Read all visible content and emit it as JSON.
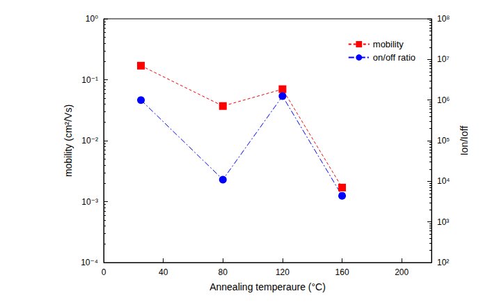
{
  "chart_data": {
    "type": "line",
    "x_label": "Annealing temperaure (°C)",
    "y_label": "mobility (cm²/Vs)",
    "y2_label": "Ion/Ioff",
    "x": [
      25,
      80,
      120,
      160
    ],
    "series": [
      {
        "name": "mobility",
        "color": "#ff0000",
        "values": [
          0.17,
          0.037,
          0.07,
          0.0017
        ],
        "marker": "square",
        "line_style": "dashed"
      },
      {
        "name": "on/off ratio",
        "color": "#0000ff",
        "values": [
          1000000,
          11000,
          1250000,
          4400
        ],
        "marker": "circle",
        "line_style": "dashdot",
        "axis": "y2"
      }
    ],
    "xlim": [
      0,
      220
    ],
    "xticks": [
      0,
      40,
      80,
      120,
      160,
      200
    ],
    "ylim": [
      0.0001,
      1
    ],
    "yticks": [
      {
        "value": 0.0001,
        "label": "10⁻⁴"
      },
      {
        "value": 0.001,
        "label": "10⁻³"
      },
      {
        "value": 0.01,
        "label": "10⁻²"
      },
      {
        "value": 0.1,
        "label": "10⁻¹"
      },
      {
        "value": 1,
        "label": "10⁰"
      }
    ],
    "y2lim": [
      100,
      100000000
    ],
    "y2ticks": [
      {
        "value": 100,
        "label": "10²"
      },
      {
        "value": 1000,
        "label": "10³"
      },
      {
        "value": 10000,
        "label": "10⁴"
      },
      {
        "value": 100000,
        "label": "10⁵"
      },
      {
        "value": 1000000,
        "label": "10⁶"
      },
      {
        "value": 10000000,
        "label": "10⁷"
      },
      {
        "value": 100000000,
        "label": "10⁸"
      }
    ],
    "log": "y",
    "grid": false,
    "legend": "upper right"
  }
}
